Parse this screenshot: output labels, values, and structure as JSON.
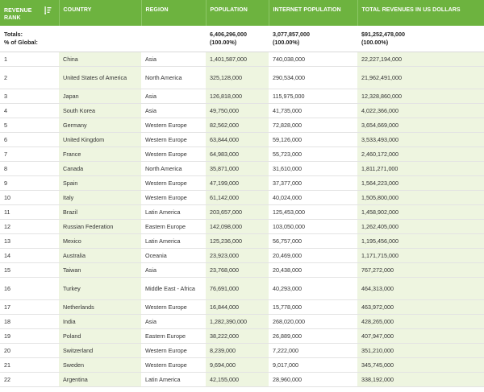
{
  "header": {
    "rank": "REVENUE RANK",
    "country": "COUNTRY",
    "region": "REGION",
    "population": "POPULATION",
    "internet": "INTERNET POPULATION",
    "revenue": "TOTAL REVENUES IN US DOLLARS",
    "sort_icon": "sort-descending-icon"
  },
  "totals": {
    "label1": "Totals:",
    "label2": "% of Global:",
    "population": "6,406,296,000",
    "population_pct": "(100.00%)",
    "internet": "3,077,857,000",
    "internet_pct": "(100.00%)",
    "revenue": "$91,252,478,000",
    "revenue_pct": "(100.00%)"
  },
  "rows": [
    {
      "rank": "1",
      "country": "China",
      "region": "Asia",
      "population": "1,401,587,000",
      "internet": "740,038,000",
      "revenue": "22,227,194,000"
    },
    {
      "rank": "2",
      "country": "United States of America",
      "region": "North America",
      "population": "325,128,000",
      "internet": "290,534,000",
      "revenue": "21,962,491,000"
    },
    {
      "rank": "3",
      "country": "Japan",
      "region": "Asia",
      "population": "126,818,000",
      "internet": "115,975,000",
      "revenue": "12,328,860,000"
    },
    {
      "rank": "4",
      "country": "South Korea",
      "region": "Asia",
      "population": "49,750,000",
      "internet": "41,735,000",
      "revenue": "4,022,366,000"
    },
    {
      "rank": "5",
      "country": "Germany",
      "region": "Western Europe",
      "population": "82,562,000",
      "internet": "72,828,000",
      "revenue": "3,654,669,000"
    },
    {
      "rank": "6",
      "country": "United Kingdom",
      "region": "Western Europe",
      "population": "63,844,000",
      "internet": "59,126,000",
      "revenue": "3,533,493,000"
    },
    {
      "rank": "7",
      "country": "France",
      "region": "Western Europe",
      "population": "64,983,000",
      "internet": "55,723,000",
      "revenue": "2,460,172,000"
    },
    {
      "rank": "8",
      "country": "Canada",
      "region": "North America",
      "population": "35,871,000",
      "internet": "31,610,000",
      "revenue": "1,811,271,000"
    },
    {
      "rank": "9",
      "country": "Spain",
      "region": "Western Europe",
      "population": "47,199,000",
      "internet": "37,377,000",
      "revenue": "1,564,223,000"
    },
    {
      "rank": "10",
      "country": "Italy",
      "region": "Western Europe",
      "population": "61,142,000",
      "internet": "40,024,000",
      "revenue": "1,505,800,000"
    },
    {
      "rank": "11",
      "country": "Brazil",
      "region": "Latin America",
      "population": "203,657,000",
      "internet": "125,453,000",
      "revenue": "1,458,902,000"
    },
    {
      "rank": "12",
      "country": "Russian Federation",
      "region": "Eastern Europe",
      "population": "142,098,000",
      "internet": "103,050,000",
      "revenue": "1,262,405,000"
    },
    {
      "rank": "13",
      "country": "Mexico",
      "region": "Latin America",
      "population": "125,236,000",
      "internet": "56,757,000",
      "revenue": "1,195,456,000"
    },
    {
      "rank": "14",
      "country": "Australia",
      "region": "Oceania",
      "population": "23,923,000",
      "internet": "20,469,000",
      "revenue": "1,171,715,000"
    },
    {
      "rank": "15",
      "country": "Taiwan",
      "region": "Asia",
      "population": "23,768,000",
      "internet": "20,438,000",
      "revenue": "767,272,000"
    },
    {
      "rank": "16",
      "country": "Turkey",
      "region": "Middle East - Africa",
      "population": "76,691,000",
      "internet": "40,293,000",
      "revenue": "464,313,000"
    },
    {
      "rank": "17",
      "country": "Netherlands",
      "region": "Western Europe",
      "population": "16,844,000",
      "internet": "15,778,000",
      "revenue": "463,972,000"
    },
    {
      "rank": "18",
      "country": "India",
      "region": "Asia",
      "population": "1,282,390,000",
      "internet": "268,020,000",
      "revenue": "428,265,000"
    },
    {
      "rank": "19",
      "country": "Poland",
      "region": "Eastern Europe",
      "population": "38,222,000",
      "internet": "26,889,000",
      "revenue": "407,947,000"
    },
    {
      "rank": "20",
      "country": "Switzerland",
      "region": "Western Europe",
      "population": "8,239,000",
      "internet": "7,222,000",
      "revenue": "351,210,000"
    },
    {
      "rank": "21",
      "country": "Sweden",
      "region": "Western Europe",
      "population": "9,694,000",
      "internet": "9,017,000",
      "revenue": "345,745,000"
    },
    {
      "rank": "22",
      "country": "Argentina",
      "region": "Latin America",
      "population": "42,155,000",
      "internet": "28,960,000",
      "revenue": "338,192,000"
    }
  ]
}
